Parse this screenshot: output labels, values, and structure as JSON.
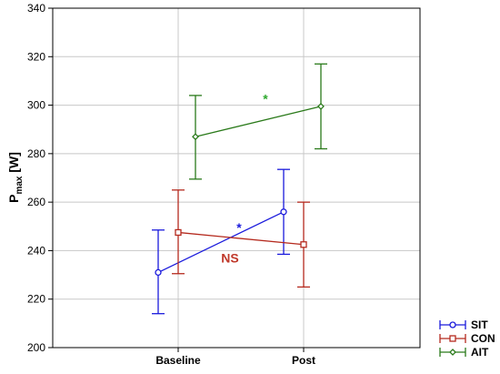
{
  "chart_data": {
    "type": "line",
    "title": "",
    "ylabel_main": "P",
    "ylabel_sub": "max",
    "ylabel_unit": " [W]",
    "xlabel": "",
    "categories": [
      "Baseline",
      "Post"
    ],
    "ylim": [
      200,
      340
    ],
    "yticks": [
      200,
      220,
      240,
      260,
      280,
      300,
      320,
      340
    ],
    "grid": true,
    "legend_position": "bottom-right",
    "series": [
      {
        "name": "SIT",
        "color": "#1a1adc",
        "marker": "circle",
        "values": [
          231,
          256
        ],
        "err_low": [
          214,
          238.5
        ],
        "err_high": [
          248.5,
          273.5
        ]
      },
      {
        "name": "CON",
        "color": "#b52a1e",
        "marker": "square",
        "values": [
          247.5,
          242.5
        ],
        "err_low": [
          230.5,
          225
        ],
        "err_high": [
          265,
          260
        ]
      },
      {
        "name": "AIT",
        "color": "#2a7a1a",
        "marker": "diamond",
        "values": [
          287,
          299.5
        ],
        "err_low": [
          269.5,
          282
        ],
        "err_high": [
          304,
          317
        ]
      }
    ],
    "annotations": [
      {
        "text": "*",
        "color": "#2ea82e",
        "x": 1.5,
        "y": 303
      },
      {
        "text": "*",
        "color": "#1a1adc",
        "x": 1.5,
        "y": 250
      },
      {
        "text": "NS",
        "color": "#c0392b",
        "x": 1.5,
        "y": 237
      }
    ]
  }
}
